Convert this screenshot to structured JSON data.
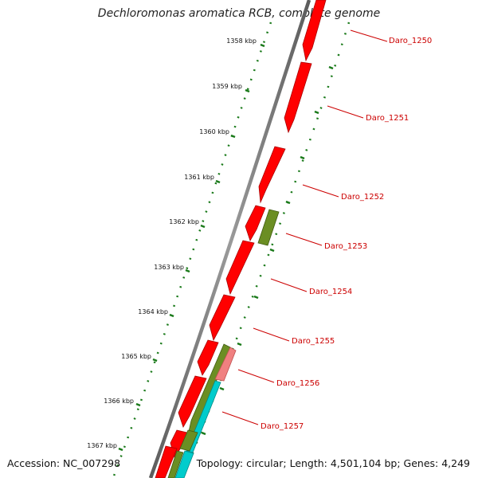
{
  "title": "Dechloromonas aromatica RCB, complete genome",
  "accession_label": "Accession: NC_007298",
  "topology_label": "Topology: circular; Length: 4,501,104 bp; Genes: 4,249",
  "ticks": [
    "1358 kbp",
    "1359 kbp",
    "1360 kbp",
    "1361 kbp",
    "1362 kbp",
    "1363 kbp",
    "1364 kbp",
    "1365 kbp",
    "1366 kbp",
    "1367 kbp"
  ],
  "genes": [
    "Daro_1250",
    "Daro_1251",
    "Daro_1252",
    "Daro_1253",
    "Daro_1254",
    "Daro_1255",
    "Daro_1256",
    "Daro_1257"
  ],
  "colors": {
    "backbone": "#7a7a7a",
    "gene_red": "#ff0000",
    "gene_red_dark": "#a80000",
    "gene_olive": "#6b8e23",
    "gene_pink": "#f08080",
    "gene_cyan": "#00cccc",
    "tick_green": "#1a7a1a",
    "label_red": "#cc0000"
  }
}
